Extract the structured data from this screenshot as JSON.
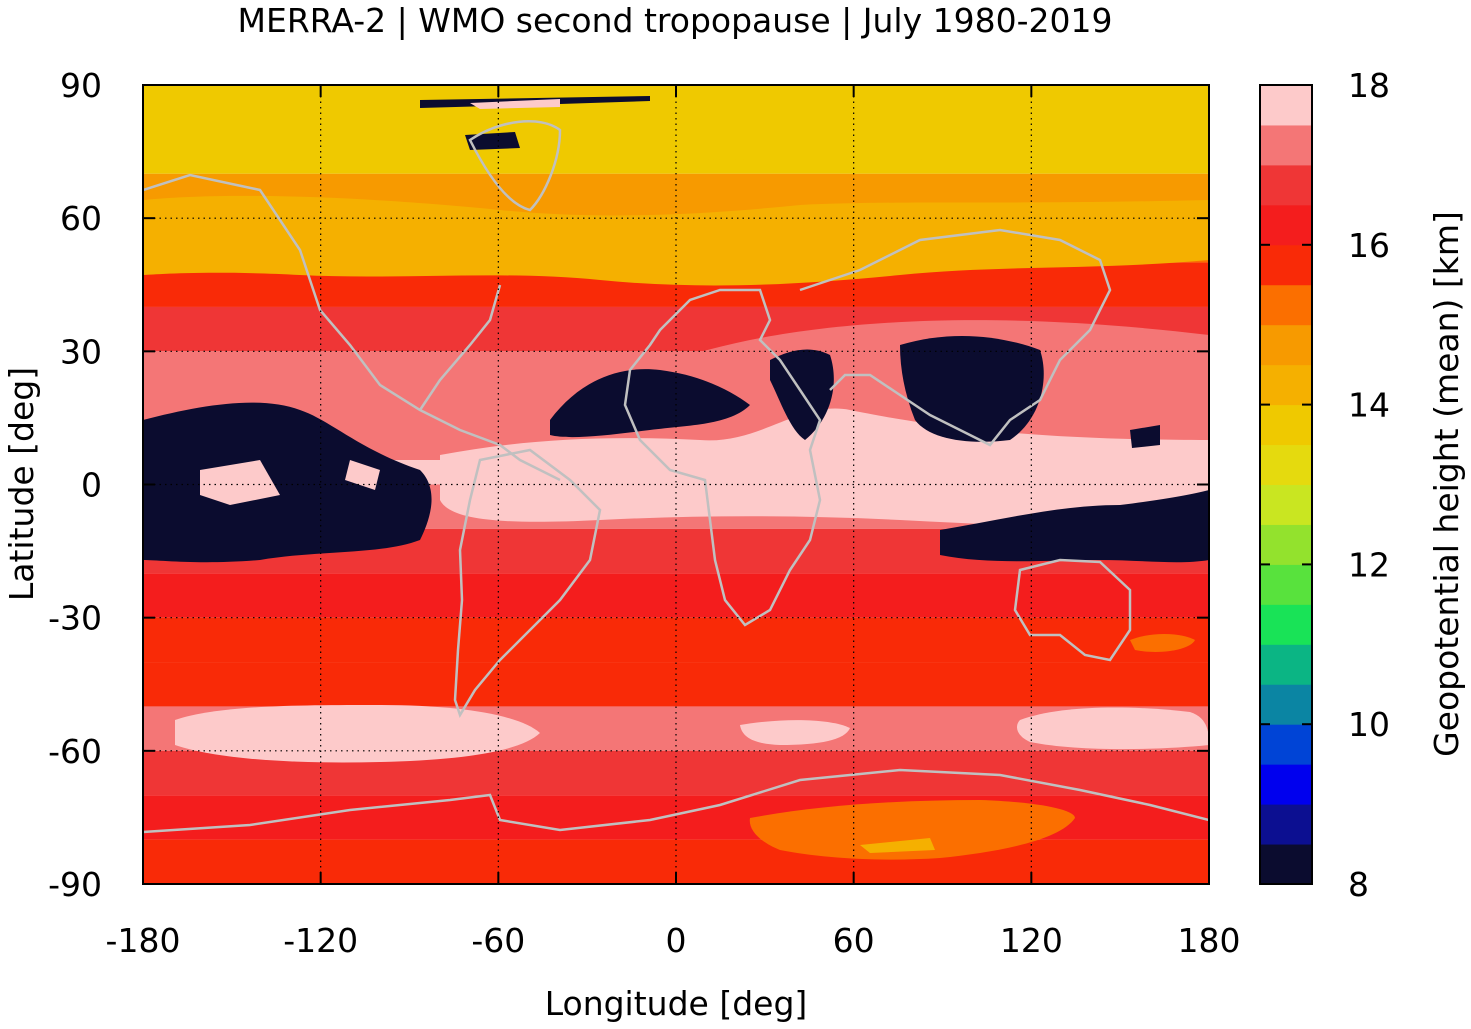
{
  "title": "MERRA-2 | WMO second tropopause | July 1980-2019",
  "chart_data": {
    "type": "heatmap",
    "xlabel": "Longitude [deg]",
    "ylabel": "Latitude [deg]",
    "xlim": [
      -180,
      180
    ],
    "ylim": [
      -90,
      90
    ],
    "x_ticks": [
      "-180",
      "-120",
      "-60",
      "0",
      "60",
      "120",
      "180"
    ],
    "y_ticks": [
      "90",
      "60",
      "30",
      "0",
      "-30",
      "-60",
      "-90"
    ],
    "grid": true,
    "colorbar": {
      "label": "Geopotential height (mean) [km]",
      "range": [
        8,
        18
      ],
      "ticks": [
        "18",
        "16",
        "14",
        "12",
        "10",
        "8"
      ],
      "colors": [
        "#0b0c2f",
        "#0c0f91",
        "#0000ee",
        "#0044d6",
        "#0b85a3",
        "#0bb584",
        "#19e357",
        "#58e23d",
        "#93e22d",
        "#c9e621",
        "#e5da0e",
        "#efc900",
        "#f5b000",
        "#f79a00",
        "#fb6f00",
        "#f92a07",
        "#f41d1d",
        "#ef3636",
        "#f47676",
        "#fdcaca"
      ]
    },
    "zonal_mean_height_km": [
      {
        "lat": 85,
        "value": 13.9
      },
      {
        "lat": 75,
        "value": 13.9
      },
      {
        "lat": 65,
        "value": 14.5
      },
      {
        "lat": 55,
        "value": 15.1
      },
      {
        "lat": 45,
        "value": 15.9
      },
      {
        "lat": 35,
        "value": 16.5
      },
      {
        "lat": 25,
        "value": 17.1
      },
      {
        "lat": 15,
        "value": 17.0
      },
      {
        "lat": 5,
        "value": 17.8
      },
      {
        "lat": -5,
        "value": 17.3
      },
      {
        "lat": -15,
        "value": 16.9
      },
      {
        "lat": -25,
        "value": 16.2
      },
      {
        "lat": -35,
        "value": 15.9
      },
      {
        "lat": -45,
        "value": 15.9
      },
      {
        "lat": -55,
        "value": 17.2
      },
      {
        "lat": -65,
        "value": 16.9
      },
      {
        "lat": -75,
        "value": 16.1
      },
      {
        "lat": -85,
        "value": 15.8
      }
    ]
  }
}
